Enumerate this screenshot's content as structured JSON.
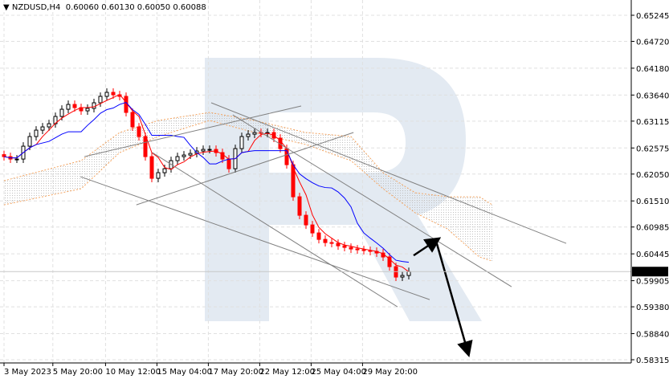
{
  "header": {
    "symbol": "NZDUSD,H4",
    "open": "0.60060",
    "high": "0.60130",
    "low": "0.60050",
    "close": "0.60088",
    "icon": "triangle-down-icon"
  },
  "colors": {
    "bull": "#000000",
    "bear": "#ff0000",
    "tenkan": "#ff0000",
    "kijun": "#0000ff",
    "cloud_edge": "#f4a460",
    "cloud_fill": "#c0c0c0",
    "trendline": "#808080",
    "arrow": "#000000",
    "watermark": "#e3eaf2",
    "last_price_bg": "#000000"
  },
  "chart_data": {
    "type": "candlestick",
    "ylim": [
      0.58315,
      0.65245
    ],
    "y_ticks": [
      "0.65245",
      "0.64720",
      "0.64180",
      "0.63640",
      "0.63115",
      "0.62575",
      "0.62050",
      "0.61510",
      "0.60985",
      "0.60445",
      "0.59905",
      "0.59380",
      "0.58840",
      "0.58315"
    ],
    "x_ticks": [
      {
        "i": 0,
        "label": "3 May 2023"
      },
      {
        "i": 7.6,
        "label": "5 May 20:00"
      },
      {
        "i": 15.8,
        "label": "10 May 12:00"
      },
      {
        "i": 23.8,
        "label": "15 May 04:00"
      },
      {
        "i": 31.8,
        "label": "17 May 20:00"
      },
      {
        "i": 39.8,
        "label": "22 May 12:00"
      },
      {
        "i": 47.8,
        "label": "25 May 04:00"
      },
      {
        "i": 55.8,
        "label": "29 May 20:00"
      }
    ],
    "last_price": "0.60088",
    "closes": [
      0.62401,
      0.62352,
      0.62352,
      0.62611,
      0.62805,
      0.62934,
      0.62999,
      0.63063,
      0.63209,
      0.63354,
      0.63451,
      0.63387,
      0.63322,
      0.63371,
      0.63484,
      0.63613,
      0.63694,
      0.63645,
      0.63613,
      0.6329,
      0.62999,
      0.62805,
      0.62401,
      0.61965,
      0.62078,
      0.62158,
      0.6232,
      0.62401,
      0.62433,
      0.62465,
      0.62514,
      0.62546,
      0.62546,
      0.62482,
      0.62352,
      0.62158,
      0.62562,
      0.62805,
      0.62853,
      0.62886,
      0.6287,
      0.62886,
      0.62773,
      0.62562,
      0.62239,
      0.61593,
      0.61221,
      0.61027,
      0.60866,
      0.60736,
      0.60672,
      0.60656,
      0.60607,
      0.60575,
      0.60543,
      0.60527,
      0.60511,
      0.60495,
      0.60462,
      0.60382,
      0.60188,
      0.59978,
      0.6001,
      0.60088
    ],
    "cloud": [
      [
        0,
        0.61916,
        0.61431
      ],
      [
        12,
        0.6232,
        0.61755
      ],
      [
        18,
        0.62886,
        0.62482
      ],
      [
        24,
        0.63128,
        0.62805
      ],
      [
        32,
        0.6329,
        0.63128
      ],
      [
        39,
        0.63128,
        0.62886
      ],
      [
        47,
        0.62886,
        0.62643
      ],
      [
        54,
        0.62805,
        0.6232
      ],
      [
        59,
        0.62078,
        0.61755
      ],
      [
        64,
        0.61674,
        0.6127
      ],
      [
        69,
        0.61593,
        0.60947
      ],
      [
        74,
        0.61593,
        0.60381
      ],
      [
        76,
        0.61431,
        0.603
      ]
    ],
    "trendlines": [
      [
        32.25,
        0.63484,
        87.5,
        0.60656
      ],
      [
        11.9,
        0.61997,
        66.25,
        0.59524
      ],
      [
        20.6,
        0.61431,
        54.4,
        0.62886
      ],
      [
        12.5,
        0.62401,
        46.25,
        0.63419
      ],
      [
        23.1,
        0.62482,
        61.25,
        0.59379
      ],
      [
        35.6,
        0.63241,
        79,
        0.59783
      ]
    ],
    "arrows": [
      [
        63.75,
        0.60413,
        67.5,
        0.60736
      ],
      [
        67.25,
        0.60704,
        72.25,
        0.58441
      ]
    ]
  }
}
